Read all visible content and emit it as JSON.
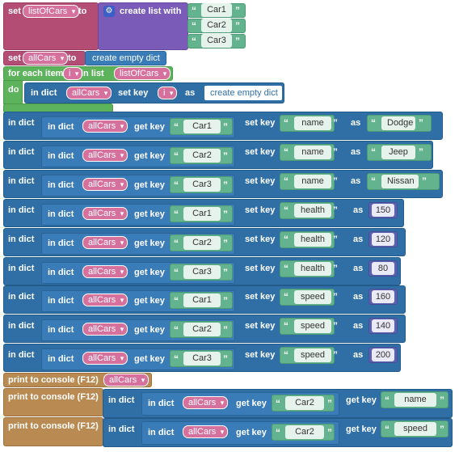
{
  "blocks": {
    "set_list": {
      "set": "set",
      "var": "listOfCars",
      "to": "to",
      "create": "create list with",
      "items": [
        "Car1",
        "Car2",
        "Car3"
      ]
    },
    "set_dict": {
      "set": "set",
      "var": "allCars",
      "to": "to",
      "create": "create empty dict"
    },
    "for_each": {
      "for": "for each item",
      "var": "i",
      "in": "in list",
      "list": "listOfCars",
      "do": "do",
      "in_dict": "in dict",
      "dict": "allCars",
      "set_key": "set key",
      "key": "i",
      "as": "as",
      "value": "create empty dict"
    },
    "rows": [
      {
        "in_dict": "in dict",
        "inner_in_dict": "in dict",
        "dict": "allCars",
        "get_key": "get key",
        "car": "Car1",
        "set_key": "set key",
        "key": "name",
        "as": "as",
        "value": "Dodge",
        "value_type": "string"
      },
      {
        "in_dict": "in dict",
        "inner_in_dict": "in dict",
        "dict": "allCars",
        "get_key": "get key",
        "car": "Car2",
        "set_key": "set key",
        "key": "name",
        "as": "as",
        "value": "Jeep",
        "value_type": "string"
      },
      {
        "in_dict": "in dict",
        "inner_in_dict": "in dict",
        "dict": "allCars",
        "get_key": "get key",
        "car": "Car3",
        "set_key": "set key",
        "key": "name",
        "as": "as",
        "value": "Nissan",
        "value_type": "string"
      },
      {
        "in_dict": "in dict",
        "inner_in_dict": "in dict",
        "dict": "allCars",
        "get_key": "get key",
        "car": "Car1",
        "set_key": "set key",
        "key": "health",
        "as": "as",
        "value": "150",
        "value_type": "number"
      },
      {
        "in_dict": "in dict",
        "inner_in_dict": "in dict",
        "dict": "allCars",
        "get_key": "get key",
        "car": "Car2",
        "set_key": "set key",
        "key": "health",
        "as": "as",
        "value": "120",
        "value_type": "number"
      },
      {
        "in_dict": "in dict",
        "inner_in_dict": "in dict",
        "dict": "allCars",
        "get_key": "get key",
        "car": "Car3",
        "set_key": "set key",
        "key": "health",
        "as": "as",
        "value": "80",
        "value_type": "number"
      },
      {
        "in_dict": "in dict",
        "inner_in_dict": "in dict",
        "dict": "allCars",
        "get_key": "get key",
        "car": "Car1",
        "set_key": "set key",
        "key": "speed",
        "as": "as",
        "value": "160",
        "value_type": "number"
      },
      {
        "in_dict": "in dict",
        "inner_in_dict": "in dict",
        "dict": "allCars",
        "get_key": "get key",
        "car": "Car2",
        "set_key": "set key",
        "key": "speed",
        "as": "as",
        "value": "140",
        "value_type": "number"
      },
      {
        "in_dict": "in dict",
        "inner_in_dict": "in dict",
        "dict": "allCars",
        "get_key": "get key",
        "car": "Car3",
        "set_key": "set key",
        "key": "speed",
        "as": "as",
        "value": "200",
        "value_type": "number"
      }
    ],
    "print1": {
      "label": "print to console (F12)",
      "var": "allCars"
    },
    "print2": {
      "label": "print to console (F12)",
      "in_dict": "in dict",
      "inner_in_dict": "in dict",
      "dict": "allCars",
      "get_key": "get key",
      "car": "Car2",
      "get_key2": "get key",
      "key": "name"
    },
    "print3": {
      "label": "print to console (F12)",
      "in_dict": "in dict",
      "inner_in_dict": "in dict",
      "dict": "allCars",
      "get_key": "get key",
      "car": "Car2",
      "get_key2": "get key",
      "key": "speed"
    }
  },
  "colors": {
    "variable": "#b34d74",
    "list": "#7a5bb8",
    "loop": "#5cb35c",
    "dict": "#2f6fa6",
    "print": "#b98b53",
    "string": "#63b38e",
    "number": "#5a62b0"
  },
  "quote_open": "“",
  "quote_close": "”"
}
